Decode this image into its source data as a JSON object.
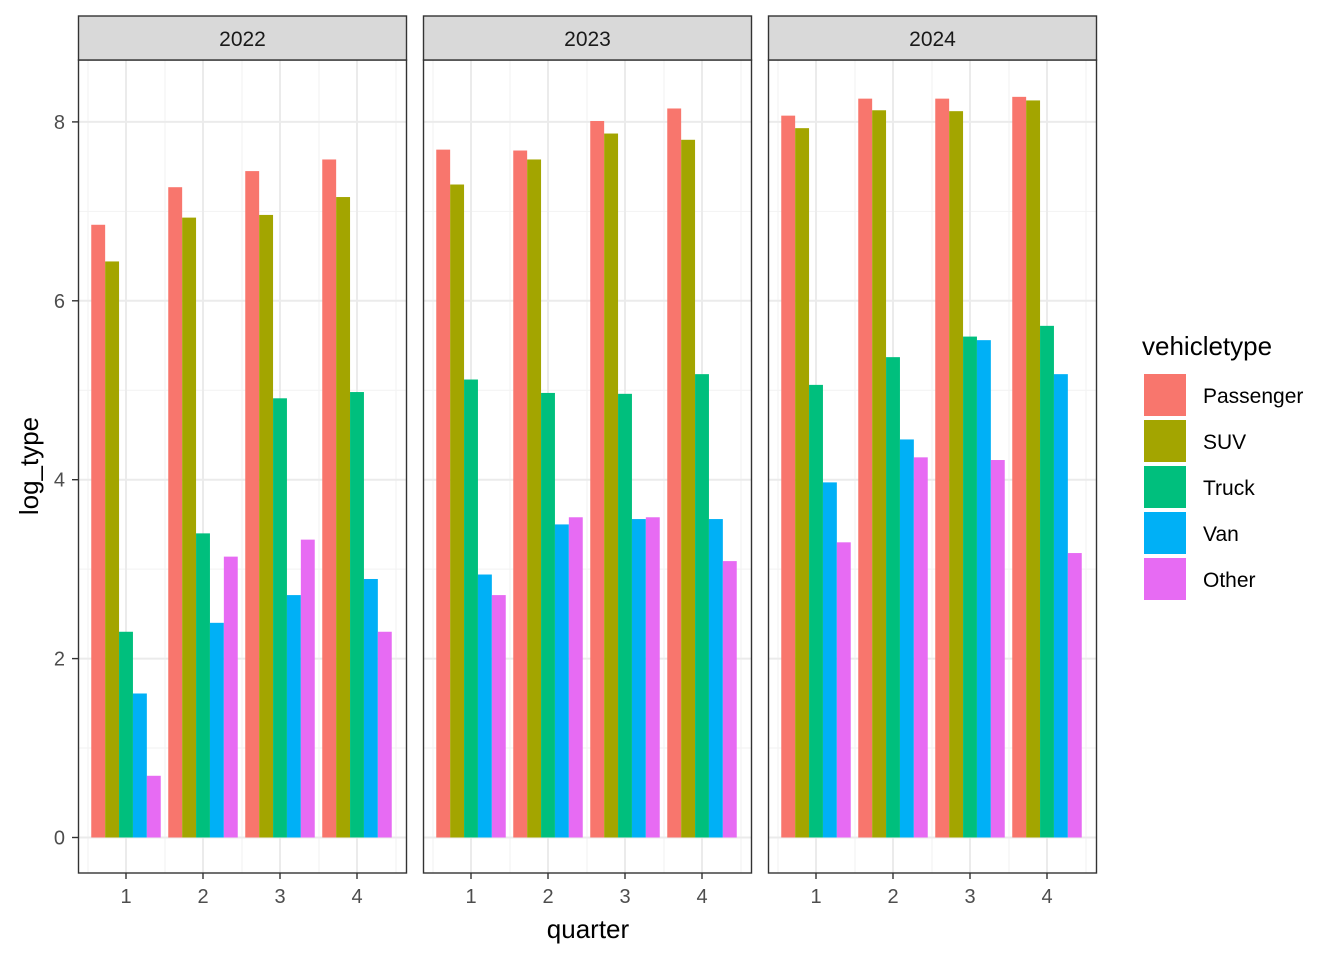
{
  "chart_data": {
    "type": "bar",
    "facet_by": "year",
    "xlabel": "quarter",
    "ylabel": "log_type",
    "ylim": [
      0,
      8.8
    ],
    "yticks": [
      0,
      2,
      4,
      6,
      8
    ],
    "categories": [
      "1",
      "2",
      "3",
      "4"
    ],
    "legend": {
      "title": "vehicletype",
      "placement": "right",
      "entries": [
        {
          "name": "Passenger",
          "color": "#F8766D"
        },
        {
          "name": "SUV",
          "color": "#A3A500"
        },
        {
          "name": "Truck",
          "color": "#00BF7D"
        },
        {
          "name": "Van",
          "color": "#00B0F6"
        },
        {
          "name": "Other",
          "color": "#E76BF3"
        }
      ]
    },
    "grid": true,
    "panels": [
      {
        "label": "2022",
        "series": [
          {
            "name": "Passenger",
            "values": [
              6.85,
              7.27,
              7.45,
              7.58
            ]
          },
          {
            "name": "SUV",
            "values": [
              6.44,
              6.93,
              6.96,
              7.16
            ]
          },
          {
            "name": "Truck",
            "values": [
              2.3,
              3.4,
              4.91,
              4.98
            ]
          },
          {
            "name": "Van",
            "values": [
              1.61,
              2.4,
              2.71,
              2.89
            ]
          },
          {
            "name": "Other",
            "values": [
              0.69,
              3.14,
              3.33,
              2.3
            ]
          }
        ]
      },
      {
        "label": "2023",
        "series": [
          {
            "name": "Passenger",
            "values": [
              7.69,
              7.68,
              8.01,
              8.15
            ]
          },
          {
            "name": "SUV",
            "values": [
              7.3,
              7.58,
              7.87,
              7.8
            ]
          },
          {
            "name": "Truck",
            "values": [
              5.12,
              4.97,
              4.96,
              5.18
            ]
          },
          {
            "name": "Van",
            "values": [
              2.94,
              3.5,
              3.56,
              3.56
            ]
          },
          {
            "name": "Other",
            "values": [
              2.71,
              3.58,
              3.58,
              3.09
            ]
          }
        ]
      },
      {
        "label": "2024",
        "series": [
          {
            "name": "Passenger",
            "values": [
              8.07,
              8.26,
              8.26,
              8.28
            ]
          },
          {
            "name": "SUV",
            "values": [
              7.93,
              8.13,
              8.12,
              8.24
            ]
          },
          {
            "name": "Truck",
            "values": [
              5.06,
              5.37,
              5.6,
              5.72
            ]
          },
          {
            "name": "Van",
            "values": [
              3.97,
              4.45,
              5.56,
              5.18
            ]
          },
          {
            "name": "Other",
            "values": [
              3.3,
              4.25,
              4.22,
              3.18
            ]
          }
        ]
      }
    ]
  }
}
